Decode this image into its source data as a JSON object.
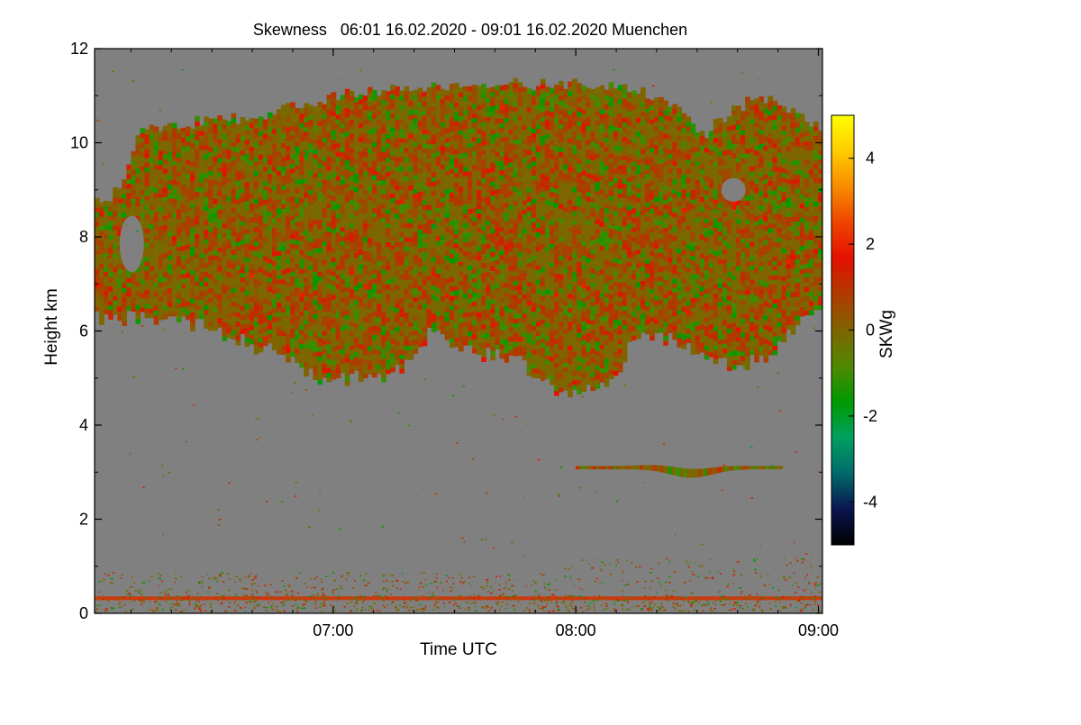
{
  "chart_data": {
    "type": "heatmap",
    "title": "Skewness   06:01 16.02.2020 - 09:01 16.02.2020 Muenchen",
    "xlabel": "Time UTC",
    "ylabel": "Height km",
    "x_range": [
      "06:01",
      "09:01"
    ],
    "xlim_hours": [
      6.0167,
      9.0167
    ],
    "ylim": [
      0,
      12
    ],
    "x_ticks": [
      {
        "label": "07:00",
        "value": 7.0
      },
      {
        "label": "08:00",
        "value": 8.0
      },
      {
        "label": "09:00",
        "value": 9.0
      }
    ],
    "x_minor_ticks": [
      6.1667,
      6.3333,
      6.5,
      6.6667,
      6.8333,
      7.1667,
      7.3333,
      7.5,
      7.6667,
      7.8333,
      8.1667,
      8.3333,
      8.5,
      8.6667,
      8.8333
    ],
    "y_ticks": [
      0,
      2,
      4,
      6,
      8,
      10,
      12
    ],
    "background_color": "#808080",
    "colorbar": {
      "label": "SKWg",
      "range": [
        -5,
        5
      ],
      "ticks": [
        -4,
        -2,
        0,
        2,
        4
      ],
      "colors": [
        "#000000",
        "#0a1550",
        "#006a6a",
        "#00a060",
        "#009a00",
        "#508800",
        "#806400",
        "#b03a00",
        "#e41000",
        "#ee4400",
        "#f88a00",
        "#ffcc00",
        "#ffff00"
      ]
    },
    "features": [
      {
        "name": "cirrus cloud",
        "time_start": 6.0,
        "time_end": 9.02,
        "height_base_km": [
          6.3,
          4.8
        ],
        "height_top_km": [
          11.3
        ],
        "skewness_range": [
          -1.5,
          1.5
        ]
      },
      {
        "name": "mid-level layer",
        "time_start": 8.0,
        "time_end": 8.85,
        "height_km": [
          2.9,
          3.15
        ],
        "skewness_range": [
          -0.5,
          1.0
        ]
      },
      {
        "name": "near-surface layer",
        "time_start": 6.0,
        "time_end": 9.02,
        "height_km": [
          0.05,
          1.2
        ],
        "skewness_range": [
          -1.0,
          1.5
        ]
      }
    ]
  }
}
